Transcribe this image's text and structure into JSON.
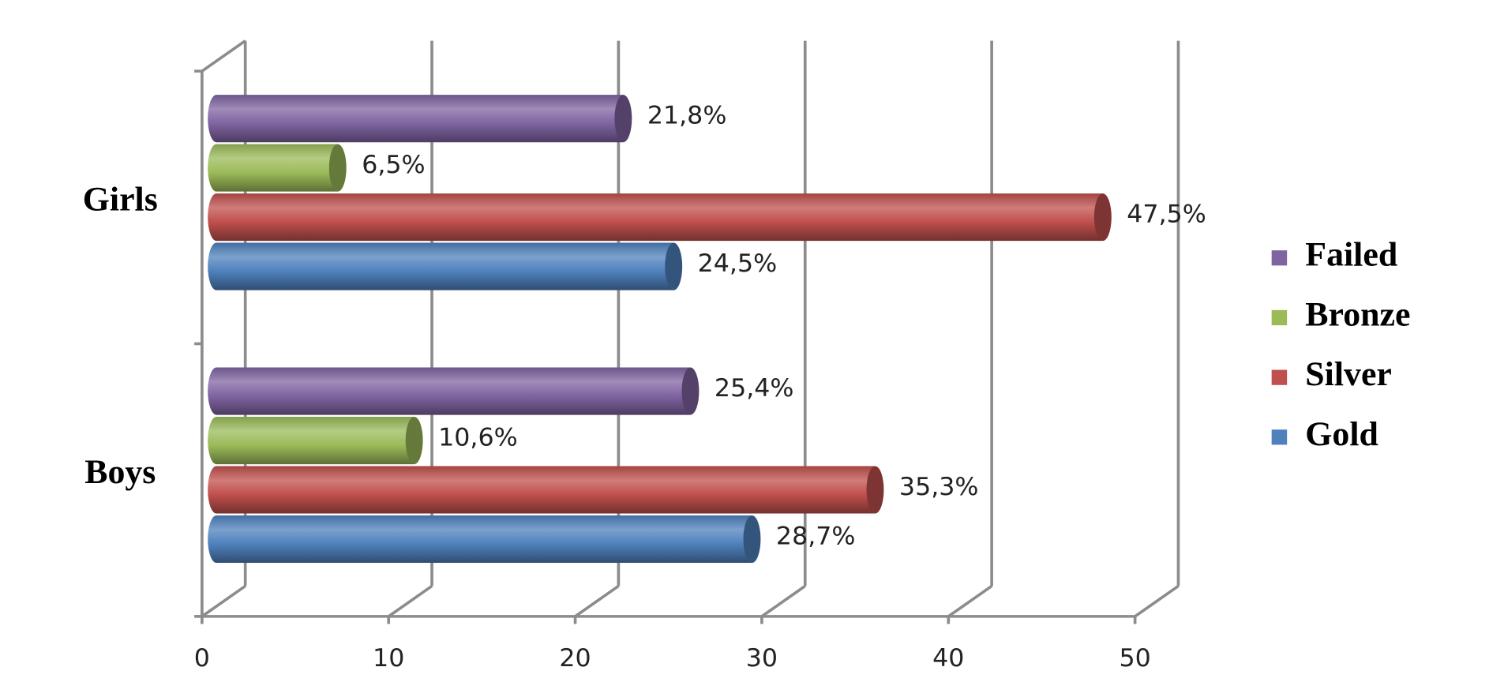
{
  "chart_data": {
    "type": "bar3d_horizontal",
    "categories": [
      "Boys",
      "Girls"
    ],
    "series": [
      {
        "name": "Gold",
        "color": "#4f81bd",
        "values": [
          28.7,
          24.5
        ],
        "value_labels": [
          "28,7%",
          "24,5%"
        ]
      },
      {
        "name": "Silver",
        "color": "#c0504d",
        "values": [
          35.3,
          47.5
        ],
        "value_labels": [
          "35,3%",
          "47,5%"
        ]
      },
      {
        "name": "Bronze",
        "color": "#9bbb59",
        "values": [
          10.6,
          6.5
        ],
        "value_labels": [
          "10,6%",
          "6,5%"
        ]
      },
      {
        "name": "Failed",
        "color": "#8064a2",
        "values": [
          25.4,
          21.8
        ],
        "value_labels": [
          "25,4%",
          "21,8%"
        ]
      }
    ],
    "xlim": [
      0,
      50
    ],
    "xticks": [
      0,
      10,
      20,
      30,
      40,
      50
    ],
    "grid": true,
    "legend": "right"
  }
}
